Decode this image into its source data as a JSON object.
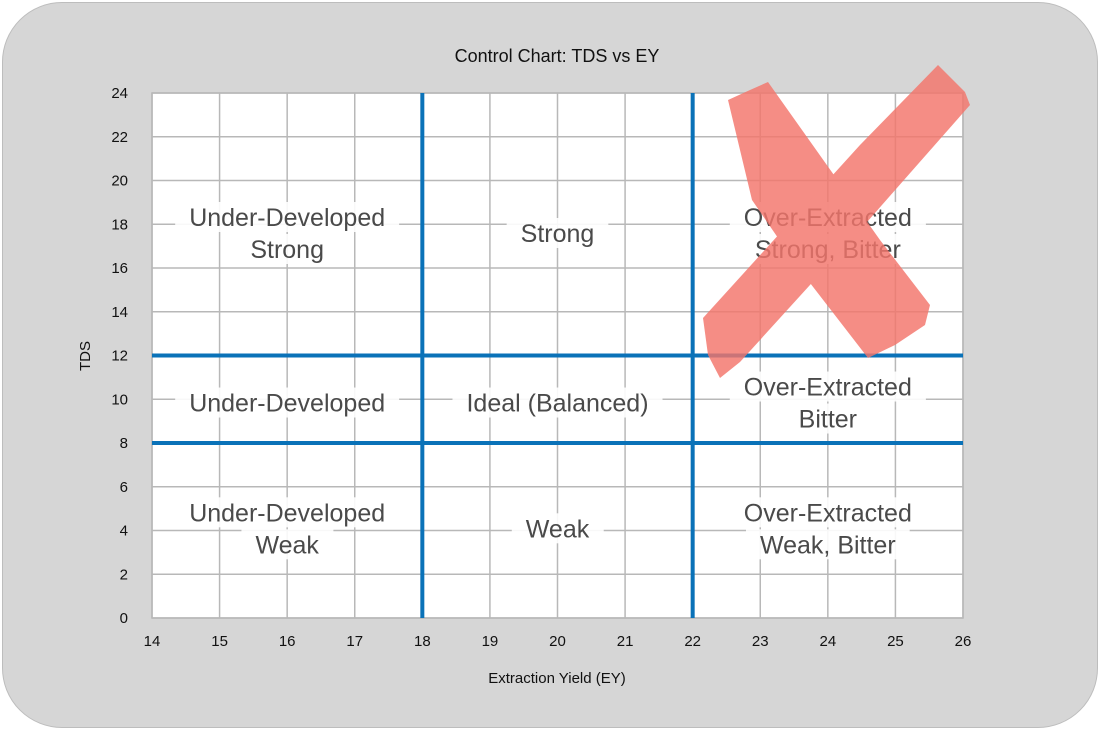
{
  "chart_data": {
    "type": "scatter",
    "title": "Control Chart: TDS vs EY",
    "xlabel": "Extraction Yield (EY)",
    "ylabel": "TDS",
    "xlim": [
      14,
      26
    ],
    "ylim": [
      0,
      24
    ],
    "xticks": [
      14,
      15,
      16,
      17,
      18,
      19,
      20,
      21,
      22,
      23,
      24,
      25,
      26
    ],
    "yticks": [
      0,
      2,
      4,
      6,
      8,
      10,
      12,
      14,
      16,
      18,
      20,
      22,
      24
    ],
    "grid": true,
    "reference_lines": {
      "vertical_ey": [
        18,
        22
      ],
      "horizontal_tds": [
        8,
        12
      ],
      "color": "#0a72b8"
    },
    "regions": [
      {
        "lines": [
          "Under-Developed",
          "Strong"
        ],
        "x": 16,
        "y": 17.6
      },
      {
        "lines": [
          "Strong"
        ],
        "x": 20,
        "y": 17.6
      },
      {
        "lines": [
          "Over-Extracted",
          "Strong, Bitter"
        ],
        "x": 24,
        "y": 17.6
      },
      {
        "lines": [
          "Under-Developed"
        ],
        "x": 16,
        "y": 9.85
      },
      {
        "lines": [
          "Ideal (Balanced)"
        ],
        "x": 20,
        "y": 9.85
      },
      {
        "lines": [
          "Over-Extracted",
          "Bitter"
        ],
        "x": 24,
        "y": 9.85
      },
      {
        "lines": [
          "Under-Developed",
          "Weak"
        ],
        "x": 16,
        "y": 4.1
      },
      {
        "lines": [
          "Weak"
        ],
        "x": 20,
        "y": 4.1
      },
      {
        "lines": [
          "Over-Extracted",
          "Weak, Bitter"
        ],
        "x": 24,
        "y": 4.1
      }
    ],
    "overlay": {
      "mark": "red-x-cross-out",
      "color": "#f4756b",
      "target_region": "Over-Extracted Strong, Bitter"
    }
  }
}
